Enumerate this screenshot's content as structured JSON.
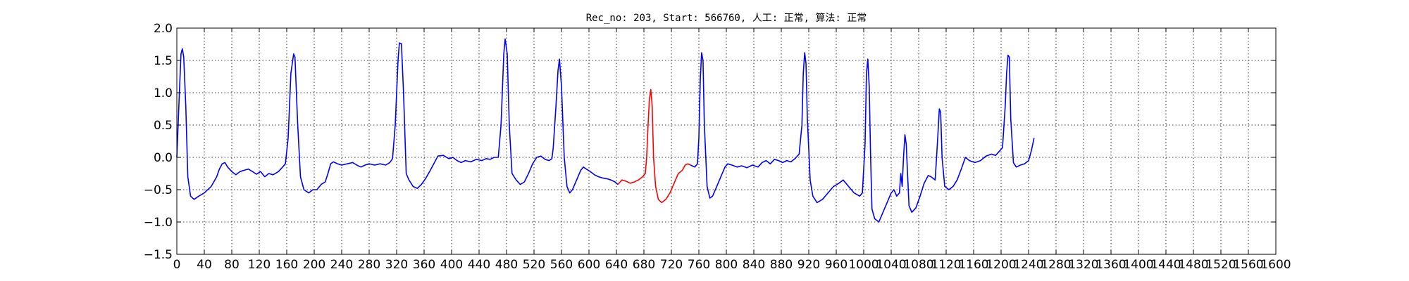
{
  "chart_data": {
    "type": "line",
    "title": "Rec_no: 203, Start: 566760, 人工: 正常, 算法: 正常",
    "xlabel": "",
    "ylabel": "",
    "xlim": [
      0,
      1600
    ],
    "ylim": [
      -1.5,
      2.0
    ],
    "grid": true,
    "x_ticks": [
      0,
      40,
      80,
      120,
      160,
      200,
      240,
      280,
      320,
      360,
      400,
      440,
      480,
      520,
      560,
      600,
      640,
      680,
      720,
      760,
      800,
      840,
      880,
      920,
      960,
      1000,
      1040,
      1080,
      1120,
      1160,
      1200,
      1240,
      1280,
      1320,
      1360,
      1400,
      1440,
      1480,
      1520,
      1560,
      1600
    ],
    "y_ticks": [
      -1.5,
      -1.0,
      -0.5,
      0.0,
      0.5,
      1.0,
      1.5,
      2.0
    ],
    "y_tick_labels": [
      "−1.5",
      "−1.0",
      "−0.5",
      "0.0",
      "0.5",
      "1.0",
      "1.5",
      "2.0"
    ],
    "series": [
      {
        "color": "#0000ff",
        "segment": 1,
        "points": [
          [
            0,
            0.0
          ],
          [
            3,
            0.8
          ],
          [
            6,
            1.6
          ],
          [
            8,
            1.68
          ],
          [
            10,
            1.55
          ],
          [
            13,
            0.8
          ],
          [
            16,
            -0.3
          ],
          [
            20,
            -0.6
          ],
          [
            25,
            -0.65
          ],
          [
            32,
            -0.6
          ],
          [
            40,
            -0.55
          ],
          [
            50,
            -0.45
          ],
          [
            58,
            -0.3
          ],
          [
            62,
            -0.18
          ],
          [
            66,
            -0.1
          ],
          [
            70,
            -0.08
          ],
          [
            74,
            -0.15
          ],
          [
            80,
            -0.22
          ],
          [
            86,
            -0.27
          ],
          [
            92,
            -0.22
          ],
          [
            98,
            -0.2
          ],
          [
            104,
            -0.18
          ],
          [
            110,
            -0.22
          ],
          [
            116,
            -0.26
          ],
          [
            122,
            -0.22
          ],
          [
            128,
            -0.3
          ],
          [
            134,
            -0.25
          ],
          [
            140,
            -0.27
          ],
          [
            148,
            -0.22
          ],
          [
            154,
            -0.15
          ],
          [
            158,
            -0.1
          ],
          [
            162,
            0.3
          ],
          [
            166,
            1.3
          ],
          [
            170,
            1.6
          ],
          [
            172,
            1.55
          ],
          [
            176,
            0.5
          ],
          [
            180,
            -0.3
          ],
          [
            185,
            -0.5
          ],
          [
            192,
            -0.55
          ],
          [
            198,
            -0.5
          ],
          [
            204,
            -0.5
          ],
          [
            210,
            -0.42
          ],
          [
            216,
            -0.38
          ],
          [
            220,
            -0.25
          ],
          [
            224,
            -0.1
          ],
          [
            228,
            -0.07
          ],
          [
            234,
            -0.1
          ],
          [
            240,
            -0.12
          ],
          [
            248,
            -0.1
          ],
          [
            256,
            -0.08
          ],
          [
            262,
            -0.12
          ],
          [
            268,
            -0.15
          ],
          [
            274,
            -0.12
          ],
          [
            280,
            -0.1
          ],
          [
            288,
            -0.12
          ],
          [
            296,
            -0.1
          ],
          [
            304,
            -0.12
          ],
          [
            310,
            -0.08
          ],
          [
            314,
            -0.02
          ],
          [
            318,
            0.5
          ],
          [
            322,
            1.5
          ],
          [
            324,
            1.77
          ],
          [
            327,
            1.76
          ],
          [
            330,
            1.0
          ],
          [
            334,
            -0.25
          ],
          [
            338,
            -0.35
          ],
          [
            344,
            -0.45
          ],
          [
            350,
            -0.48
          ],
          [
            356,
            -0.42
          ],
          [
            362,
            -0.33
          ],
          [
            368,
            -0.22
          ],
          [
            374,
            -0.1
          ],
          [
            380,
            0.02
          ],
          [
            388,
            0.03
          ],
          [
            396,
            -0.02
          ],
          [
            402,
            0.0
          ],
          [
            408,
            -0.05
          ],
          [
            414,
            -0.08
          ],
          [
            420,
            -0.05
          ],
          [
            428,
            -0.07
          ],
          [
            436,
            -0.03
          ],
          [
            444,
            -0.05
          ],
          [
            450,
            -0.02
          ],
          [
            456,
            -0.03
          ],
          [
            462,
            0.0
          ],
          [
            468,
            0.0
          ],
          [
            472,
            0.5
          ],
          [
            476,
            1.6
          ],
          [
            478,
            1.83
          ],
          [
            481,
            1.6
          ],
          [
            484,
            0.5
          ],
          [
            488,
            -0.25
          ],
          [
            494,
            -0.35
          ],
          [
            500,
            -0.42
          ],
          [
            506,
            -0.38
          ],
          [
            512,
            -0.25
          ],
          [
            518,
            -0.1
          ],
          [
            524,
            0.0
          ],
          [
            530,
            0.02
          ],
          [
            536,
            -0.03
          ],
          [
            542,
            -0.05
          ],
          [
            546,
            -0.02
          ],
          [
            548,
            0.15
          ],
          [
            552,
            0.8
          ],
          [
            555,
            1.35
          ],
          [
            557,
            1.52
          ],
          [
            560,
            1.1
          ],
          [
            564,
            0.0
          ],
          [
            568,
            -0.45
          ],
          [
            572,
            -0.55
          ],
          [
            576,
            -0.5
          ],
          [
            582,
            -0.35
          ],
          [
            588,
            -0.2
          ],
          [
            592,
            -0.15
          ],
          [
            596,
            -0.18
          ],
          [
            602,
            -0.22
          ],
          [
            608,
            -0.27
          ],
          [
            614,
            -0.3
          ],
          [
            620,
            -0.32
          ],
          [
            626,
            -0.33
          ],
          [
            632,
            -0.35
          ],
          [
            638,
            -0.38
          ],
          [
            642,
            -0.42
          ]
        ]
      },
      {
        "color": "#ff0000",
        "segment": 2,
        "points": [
          [
            642,
            -0.42
          ],
          [
            648,
            -0.35
          ],
          [
            654,
            -0.37
          ],
          [
            660,
            -0.4
          ],
          [
            666,
            -0.38
          ],
          [
            672,
            -0.35
          ],
          [
            678,
            -0.3
          ],
          [
            682,
            -0.25
          ],
          [
            684,
            0.0
          ],
          [
            686,
            0.5
          ],
          [
            688,
            0.9
          ],
          [
            690,
            1.05
          ],
          [
            692,
            0.8
          ],
          [
            694,
            0.0
          ],
          [
            697,
            -0.45
          ],
          [
            701,
            -0.65
          ],
          [
            706,
            -0.7
          ],
          [
            712,
            -0.65
          ],
          [
            718,
            -0.55
          ],
          [
            724,
            -0.4
          ],
          [
            730,
            -0.25
          ],
          [
            736,
            -0.2
          ],
          [
            740,
            -0.12
          ],
          [
            744,
            -0.1
          ],
          [
            748,
            -0.12
          ]
        ]
      },
      {
        "color": "#0000ff",
        "segment": 3,
        "points": [
          [
            748,
            -0.12
          ],
          [
            754,
            -0.15
          ],
          [
            758,
            -0.1
          ],
          [
            760,
            0.3
          ],
          [
            762,
            1.2
          ],
          [
            764,
            1.62
          ],
          [
            766,
            1.5
          ],
          [
            768,
            0.5
          ],
          [
            772,
            -0.45
          ],
          [
            776,
            -0.63
          ],
          [
            780,
            -0.6
          ],
          [
            786,
            -0.45
          ],
          [
            792,
            -0.3
          ],
          [
            798,
            -0.15
          ],
          [
            802,
            -0.1
          ],
          [
            808,
            -0.12
          ],
          [
            816,
            -0.15
          ],
          [
            822,
            -0.13
          ],
          [
            830,
            -0.16
          ],
          [
            838,
            -0.12
          ],
          [
            846,
            -0.15
          ],
          [
            852,
            -0.08
          ],
          [
            858,
            -0.05
          ],
          [
            864,
            -0.1
          ],
          [
            870,
            -0.03
          ],
          [
            876,
            -0.05
          ],
          [
            882,
            -0.08
          ],
          [
            888,
            -0.05
          ],
          [
            894,
            -0.07
          ],
          [
            900,
            -0.02
          ],
          [
            906,
            0.05
          ],
          [
            910,
            0.5
          ],
          [
            912,
            1.3
          ],
          [
            914,
            1.62
          ],
          [
            916,
            1.45
          ],
          [
            918,
            0.6
          ],
          [
            922,
            -0.35
          ],
          [
            926,
            -0.6
          ],
          [
            932,
            -0.7
          ],
          [
            940,
            -0.65
          ],
          [
            948,
            -0.55
          ],
          [
            956,
            -0.45
          ],
          [
            964,
            -0.4
          ],
          [
            970,
            -0.35
          ],
          [
            978,
            -0.45
          ],
          [
            986,
            -0.55
          ],
          [
            994,
            -0.6
          ],
          [
            998,
            -0.55
          ],
          [
            1002,
            0.2
          ],
          [
            1004,
            1.3
          ],
          [
            1006,
            1.52
          ],
          [
            1008,
            1.1
          ],
          [
            1010,
            0.0
          ],
          [
            1012,
            -0.8
          ],
          [
            1016,
            -0.95
          ],
          [
            1022,
            -1.0
          ],
          [
            1028,
            -0.85
          ],
          [
            1034,
            -0.7
          ],
          [
            1040,
            -0.55
          ],
          [
            1044,
            -0.5
          ],
          [
            1048,
            -0.6
          ],
          [
            1052,
            -0.55
          ],
          [
            1054,
            -0.25
          ],
          [
            1056,
            -0.45
          ],
          [
            1058,
            0.0
          ],
          [
            1060,
            0.35
          ],
          [
            1062,
            0.2
          ],
          [
            1064,
            -0.3
          ],
          [
            1066,
            -0.75
          ],
          [
            1070,
            -0.85
          ],
          [
            1076,
            -0.78
          ],
          [
            1082,
            -0.6
          ],
          [
            1088,
            -0.4
          ],
          [
            1094,
            -0.28
          ],
          [
            1098,
            -0.3
          ],
          [
            1104,
            -0.35
          ],
          [
            1106,
            0.0
          ],
          [
            1108,
            0.35
          ],
          [
            1110,
            0.75
          ],
          [
            1112,
            0.7
          ],
          [
            1114,
            0.0
          ],
          [
            1118,
            -0.45
          ],
          [
            1124,
            -0.5
          ],
          [
            1130,
            -0.45
          ],
          [
            1136,
            -0.35
          ],
          [
            1142,
            -0.18
          ],
          [
            1148,
            0.0
          ],
          [
            1154,
            -0.05
          ],
          [
            1162,
            -0.08
          ],
          [
            1170,
            -0.05
          ],
          [
            1178,
            0.02
          ],
          [
            1186,
            0.05
          ],
          [
            1192,
            0.03
          ],
          [
            1198,
            0.1
          ],
          [
            1202,
            0.15
          ],
          [
            1206,
            0.8
          ],
          [
            1208,
            1.3
          ],
          [
            1210,
            1.58
          ],
          [
            1212,
            1.55
          ],
          [
            1214,
            0.6
          ],
          [
            1218,
            -0.08
          ],
          [
            1222,
            -0.15
          ],
          [
            1228,
            -0.12
          ],
          [
            1234,
            -0.1
          ],
          [
            1240,
            -0.05
          ],
          [
            1244,
            0.1
          ],
          [
            1248,
            0.3
          ]
        ]
      }
    ]
  }
}
